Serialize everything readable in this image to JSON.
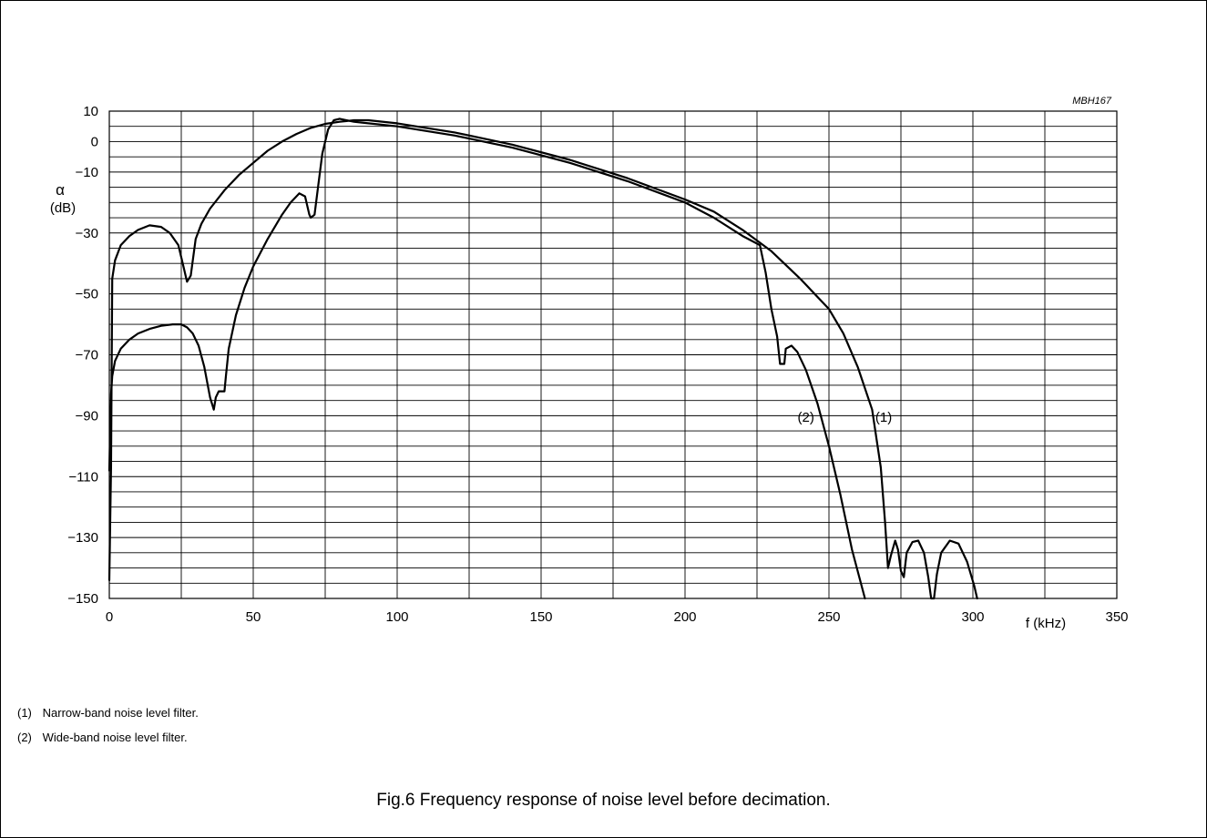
{
  "chart_data": {
    "type": "line",
    "code": "MBH167",
    "ylabel_symbol": "α",
    "ylabel_unit": "(dB)",
    "xlabel": "f (kHz)",
    "xlim": [
      0,
      350
    ],
    "ylim": [
      -150,
      10
    ],
    "x_ticks": [
      0,
      50,
      100,
      150,
      200,
      250,
      300,
      350
    ],
    "x_tick_labels": [
      "0",
      "50",
      "100",
      "150",
      "200",
      "250",
      "300",
      "350"
    ],
    "y_ticks": [
      10,
      0,
      -10,
      -30,
      -50,
      -70,
      -90,
      -110,
      -130,
      -150
    ],
    "y_tick_labels": [
      "10",
      "0",
      "−10",
      "−30",
      "−50",
      "−70",
      "−90",
      "−110",
      "−130",
      "−150"
    ],
    "grid": true,
    "series": [
      {
        "name": "(1)",
        "x": [
          0,
          0.6,
          1,
          2,
          4,
          7,
          10,
          14,
          18,
          21,
          24,
          25.5,
          27,
          28.3,
          30,
          32,
          35,
          40,
          45,
          50,
          55,
          60,
          65,
          70,
          75,
          80,
          85,
          90,
          100,
          120,
          140,
          160,
          180,
          200,
          210,
          220,
          230,
          240,
          250,
          255,
          260,
          265,
          268,
          269.5,
          270.5,
          271.5,
          273,
          274,
          275,
          276,
          277,
          279,
          281,
          283,
          284.5,
          285.5,
          286.5,
          287.5,
          289,
          292,
          295,
          298,
          300.5,
          301.5
        ],
        "y": [
          -144,
          -107,
          -45,
          -39,
          -34,
          -31,
          -29,
          -27.5,
          -28,
          -30,
          -34,
          -40,
          -46,
          -44,
          -32,
          -27,
          -22,
          -16,
          -11,
          -7,
          -3,
          0,
          2.5,
          4.5,
          5.8,
          6.5,
          7,
          7,
          6,
          3,
          -1,
          -6,
          -12,
          -19,
          -23,
          -29,
          -36,
          -45,
          -55,
          -63,
          -74,
          -88,
          -107,
          -125,
          -140,
          -136,
          -131,
          -134,
          -141,
          -143,
          -135,
          -131.5,
          -131,
          -135,
          -143,
          -150,
          -150,
          -142,
          -135,
          -131,
          -132,
          -138,
          -146,
          -150
        ]
      },
      {
        "name": "(2)",
        "x": [
          0,
          0.6,
          1,
          2,
          4,
          7,
          10,
          14,
          18,
          22,
          25,
          27,
          29,
          31,
          33,
          35,
          36.3,
          37,
          38,
          40,
          40.5,
          41.5,
          44,
          47,
          50,
          55,
          60,
          63,
          66,
          68,
          69.5,
          70,
          71.3,
          72.5,
          74,
          76,
          78,
          80,
          85,
          90,
          100,
          120,
          140,
          160,
          180,
          200,
          210,
          220,
          226,
          228,
          230,
          232,
          233,
          234.5,
          235,
          237,
          239,
          242,
          246,
          250,
          254,
          258,
          262.5
        ],
        "y": [
          -108,
          -83,
          -77,
          -72,
          -68,
          -65,
          -63,
          -61.5,
          -60.5,
          -60,
          -60,
          -61,
          -63,
          -67,
          -74,
          -84,
          -88,
          -84,
          -82,
          -82,
          -77,
          -68,
          -57,
          -48,
          -41,
          -32,
          -24,
          -20,
          -17,
          -18,
          -24,
          -25,
          -24,
          -15,
          -4,
          4,
          7,
          7.5,
          6.5,
          6,
          5,
          2,
          -2,
          -7,
          -13,
          -20,
          -25,
          -31,
          -34,
          -43,
          -55,
          -64,
          -73,
          -73,
          -68,
          -67,
          -69,
          -75,
          -86,
          -100,
          -116,
          -134,
          -150
        ]
      }
    ],
    "curve_labels": [
      {
        "text": "(2)",
        "x": 242,
        "y": -92
      },
      {
        "text": "(1)",
        "x": 269,
        "y": -92
      }
    ],
    "notes": [
      {
        "num": "(1)",
        "text": "Narrow-band noise level filter."
      },
      {
        "num": "(2)",
        "text": "Wide-band noise level filter."
      }
    ],
    "caption": "Fig.6  Frequency response of noise level before decimation."
  }
}
